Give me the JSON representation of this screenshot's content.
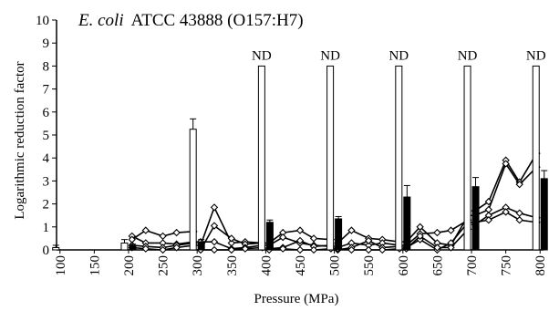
{
  "chart_data": {
    "type": "bar",
    "title_italic": "E. coli",
    "title_rest": "ATCC 43888 (O157:H7)",
    "xlabel": "Pressure (MPa)",
    "ylabel": "Logarithmic reduction factor",
    "ylim": [
      0,
      10
    ],
    "yticks": [
      "0",
      "1",
      "2",
      "3",
      "4",
      "5",
      "6",
      "7",
      "8",
      "9",
      "10"
    ],
    "xticks": [
      "100",
      "150",
      "200",
      "250",
      "300",
      "350",
      "400",
      "450",
      "500",
      "550",
      "600",
      "650",
      "700",
      "750",
      "800"
    ],
    "nd_label": "ND",
    "grid": false,
    "series": [
      {
        "style": "open-bar",
        "points": [
          {
            "x": 100,
            "value": 0.1,
            "error": 0.1
          },
          {
            "x": 200,
            "value": 0.3,
            "error": 0.15
          },
          {
            "x": 300,
            "value": 5.25,
            "error": 0.45
          },
          {
            "x": 400,
            "value": 8,
            "nd": true
          },
          {
            "x": 500,
            "value": 8,
            "nd": true
          },
          {
            "x": 600,
            "value": 8,
            "nd": true
          },
          {
            "x": 700,
            "value": 8,
            "nd": true
          },
          {
            "x": 800,
            "value": 8,
            "nd": true
          }
        ]
      },
      {
        "style": "filled-bar",
        "points": [
          {
            "x": 100,
            "value": 0,
            "error": 0
          },
          {
            "x": 200,
            "value": 0.2,
            "error": 0.05
          },
          {
            "x": 300,
            "value": 0.35,
            "error": 0.1
          },
          {
            "x": 400,
            "value": 1.2,
            "error": 0.1
          },
          {
            "x": 500,
            "value": 1.35,
            "error": 0.1
          },
          {
            "x": 600,
            "value": 2.3,
            "error": 0.5
          },
          {
            "x": 700,
            "value": 2.75,
            "error": 0.4
          },
          {
            "x": 800,
            "value": 3.1,
            "error": 0.35
          }
        ]
      }
    ],
    "lines": [
      {
        "points": [
          [
            205,
            0.6
          ],
          [
            225,
            0.3
          ],
          [
            250,
            0.3
          ],
          [
            270,
            0.25
          ],
          [
            295,
            0.35
          ]
        ]
      },
      {
        "points": [
          [
            205,
            0.45
          ],
          [
            225,
            0.85
          ],
          [
            250,
            0.6
          ],
          [
            270,
            0.75
          ],
          [
            295,
            0.8
          ]
        ]
      },
      {
        "points": [
          [
            205,
            0.2
          ],
          [
            225,
            0.15
          ],
          [
            250,
            0.1
          ],
          [
            270,
            0.2
          ],
          [
            295,
            0.3
          ]
        ]
      },
      {
        "points": [
          [
            205,
            0.1
          ],
          [
            225,
            0.05
          ],
          [
            250,
            0.0
          ],
          [
            270,
            0.1
          ],
          [
            295,
            0.2
          ]
        ]
      },
      {
        "points": [
          [
            305,
            0.2
          ],
          [
            325,
            1.85
          ],
          [
            350,
            0.3
          ],
          [
            370,
            0.35
          ],
          [
            395,
            0.3
          ]
        ]
      },
      {
        "points": [
          [
            305,
            0.0
          ],
          [
            325,
            1.05
          ],
          [
            350,
            0.5
          ],
          [
            370,
            0.25
          ],
          [
            395,
            0.3
          ]
        ]
      },
      {
        "points": [
          [
            305,
            0.35
          ],
          [
            325,
            0.35
          ],
          [
            350,
            0.05
          ],
          [
            370,
            0.1
          ],
          [
            395,
            0.2
          ]
        ]
      },
      {
        "points": [
          [
            305,
            0.0
          ],
          [
            325,
            0.0
          ],
          [
            350,
            0.0
          ],
          [
            370,
            0.05
          ],
          [
            395,
            0.1
          ]
        ]
      },
      {
        "points": [
          [
            405,
            0.3
          ],
          [
            425,
            0.75
          ],
          [
            450,
            0.85
          ],
          [
            470,
            0.5
          ],
          [
            495,
            0.45
          ]
        ]
      },
      {
        "points": [
          [
            405,
            0.2
          ],
          [
            425,
            0.55
          ],
          [
            450,
            0.3
          ],
          [
            470,
            0.2
          ],
          [
            495,
            0.15
          ]
        ]
      },
      {
        "points": [
          [
            405,
            0.05
          ],
          [
            425,
            0.1
          ],
          [
            450,
            0.4
          ],
          [
            470,
            0.15
          ],
          [
            495,
            0.2
          ]
        ]
      },
      {
        "points": [
          [
            405,
            0.0
          ],
          [
            425,
            0.05
          ],
          [
            450,
            0.0
          ],
          [
            470,
            0.0
          ],
          [
            495,
            0.05
          ]
        ]
      },
      {
        "points": [
          [
            505,
            0.3
          ],
          [
            525,
            0.85
          ],
          [
            550,
            0.5
          ],
          [
            570,
            0.45
          ],
          [
            595,
            0.35
          ]
        ]
      },
      {
        "points": [
          [
            505,
            0.1
          ],
          [
            525,
            0.3
          ],
          [
            550,
            0.2
          ],
          [
            570,
            0.3
          ],
          [
            595,
            0.2
          ]
        ]
      },
      {
        "points": [
          [
            505,
            0.0
          ],
          [
            525,
            0.1
          ],
          [
            550,
            0.4
          ],
          [
            570,
            0.1
          ],
          [
            595,
            0.15
          ]
        ]
      },
      {
        "points": [
          [
            505,
            0.05
          ],
          [
            525,
            0.0
          ],
          [
            550,
            0.0
          ],
          [
            570,
            0.0
          ],
          [
            595,
            0.05
          ]
        ]
      },
      {
        "points": [
          [
            605,
            0.35
          ],
          [
            625,
            1.0
          ],
          [
            650,
            0.3
          ],
          [
            670,
            0.2
          ],
          [
            695,
            1.5
          ]
        ]
      },
      {
        "points": [
          [
            605,
            0.2
          ],
          [
            625,
            0.7
          ],
          [
            650,
            0.75
          ],
          [
            670,
            0.85
          ],
          [
            695,
            1.3
          ]
        ]
      },
      {
        "points": [
          [
            605,
            0.1
          ],
          [
            625,
            0.45
          ],
          [
            650,
            0.0
          ],
          [
            670,
            0.3
          ],
          [
            695,
            1.2
          ]
        ]
      },
      {
        "points": [
          [
            605,
            0.05
          ],
          [
            625,
            0.6
          ],
          [
            650,
            0.1
          ],
          [
            670,
            0.1
          ],
          [
            695,
            0.9
          ]
        ]
      },
      {
        "points": [
          [
            705,
            1.7
          ],
          [
            725,
            2.1
          ],
          [
            750,
            3.9
          ],
          [
            770,
            2.95
          ],
          [
            795,
            4.2
          ]
        ]
      },
      {
        "points": [
          [
            705,
            1.5
          ],
          [
            725,
            1.75
          ],
          [
            750,
            3.75
          ],
          [
            770,
            2.85
          ],
          [
            795,
            3.6
          ]
        ]
      },
      {
        "points": [
          [
            705,
            1.1
          ],
          [
            725,
            1.5
          ],
          [
            750,
            1.85
          ],
          [
            770,
            1.6
          ],
          [
            795,
            1.4
          ]
        ]
      },
      {
        "points": [
          [
            705,
            1.2
          ],
          [
            725,
            1.3
          ],
          [
            750,
            1.65
          ],
          [
            770,
            1.3
          ],
          [
            795,
            1.2
          ]
        ]
      }
    ]
  }
}
